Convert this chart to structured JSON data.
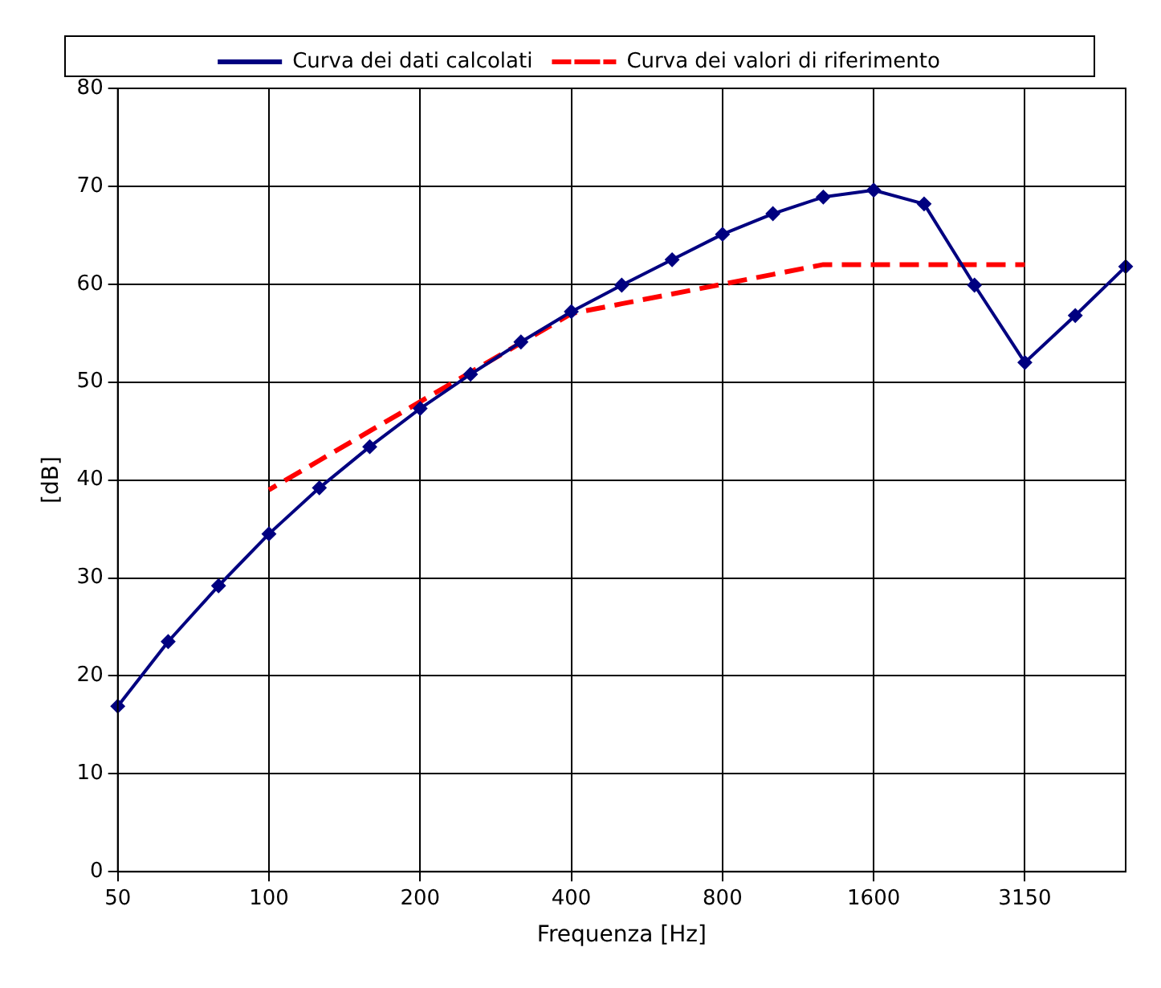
{
  "chart_data": {
    "type": "line",
    "xlabel": "Frequenza [Hz]",
    "ylabel": "[dB]",
    "categories": [
      "50",
      null,
      null,
      "100",
      null,
      null,
      "200",
      null,
      null,
      "400",
      null,
      null,
      "800",
      null,
      null,
      "1600",
      null,
      null,
      "3150",
      null,
      null
    ],
    "series": [
      {
        "name": "Curva dei dati calcolati",
        "color": "#000080",
        "marker": "diamond",
        "line_style": "solid",
        "values": [
          16.9,
          23.5,
          29.2,
          34.5,
          39.2,
          43.4,
          47.3,
          50.8,
          54.1,
          57.2,
          59.9,
          62.5,
          65.1,
          67.2,
          68.9,
          69.6,
          68.2,
          59.9,
          52.0,
          56.8,
          61.8
        ]
      },
      {
        "name": "Curva dei valori di riferimento",
        "color": "#ff0000",
        "marker": "none",
        "line_style": "dashed",
        "values": [
          null,
          null,
          null,
          39,
          42,
          45,
          48,
          51,
          54,
          57,
          58,
          59,
          60,
          61,
          62,
          62,
          62,
          62,
          62,
          null,
          null
        ]
      }
    ],
    "ylim": [
      0,
      80
    ],
    "yticks": [
      0,
      10,
      20,
      30,
      40,
      50,
      60,
      70,
      80
    ],
    "grid": true,
    "legend": "top"
  }
}
